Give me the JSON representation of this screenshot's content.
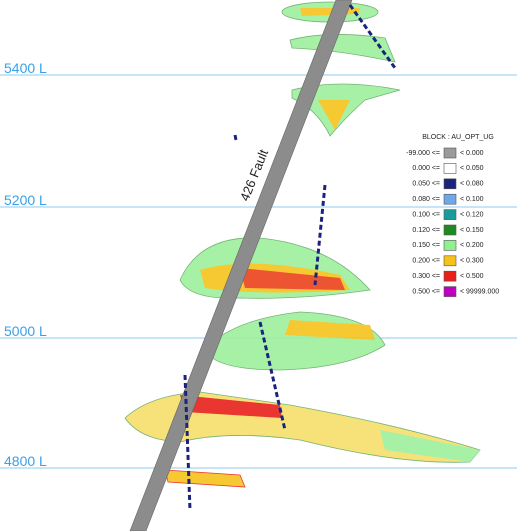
{
  "levels": [
    "5400 L",
    "5200 L",
    "5000 L",
    "4800 L"
  ],
  "fault_label": "426 Fault",
  "legend": {
    "title": "BLOCK : AU_OPT_UG",
    "rows": [
      {
        "from": "-99.000 <=",
        "to": "< 0.000",
        "color": "#9a9a9a"
      },
      {
        "from": "0.000 <=",
        "to": "< 0.050",
        "color": "#ffffff"
      },
      {
        "from": "0.050 <=",
        "to": "< 0.080",
        "color": "#1a237e"
      },
      {
        "from": "0.080 <=",
        "to": "< 0.100",
        "color": "#6fa8e8"
      },
      {
        "from": "0.100 <=",
        "to": "< 0.120",
        "color": "#1a9c9c"
      },
      {
        "from": "0.120 <=",
        "to": "< 0.150",
        "color": "#1f8a1f"
      },
      {
        "from": "0.150 <=",
        "to": "< 0.200",
        "color": "#8ef08e"
      },
      {
        "from": "0.200 <=",
        "to": "< 0.300",
        "color": "#f5c21b"
      },
      {
        "from": "0.300 <=",
        "to": "< 0.500",
        "color": "#e8201a"
      },
      {
        "from": "0.500 <=",
        "to": "< 99999.000",
        "color": "#c000c0"
      }
    ]
  }
}
